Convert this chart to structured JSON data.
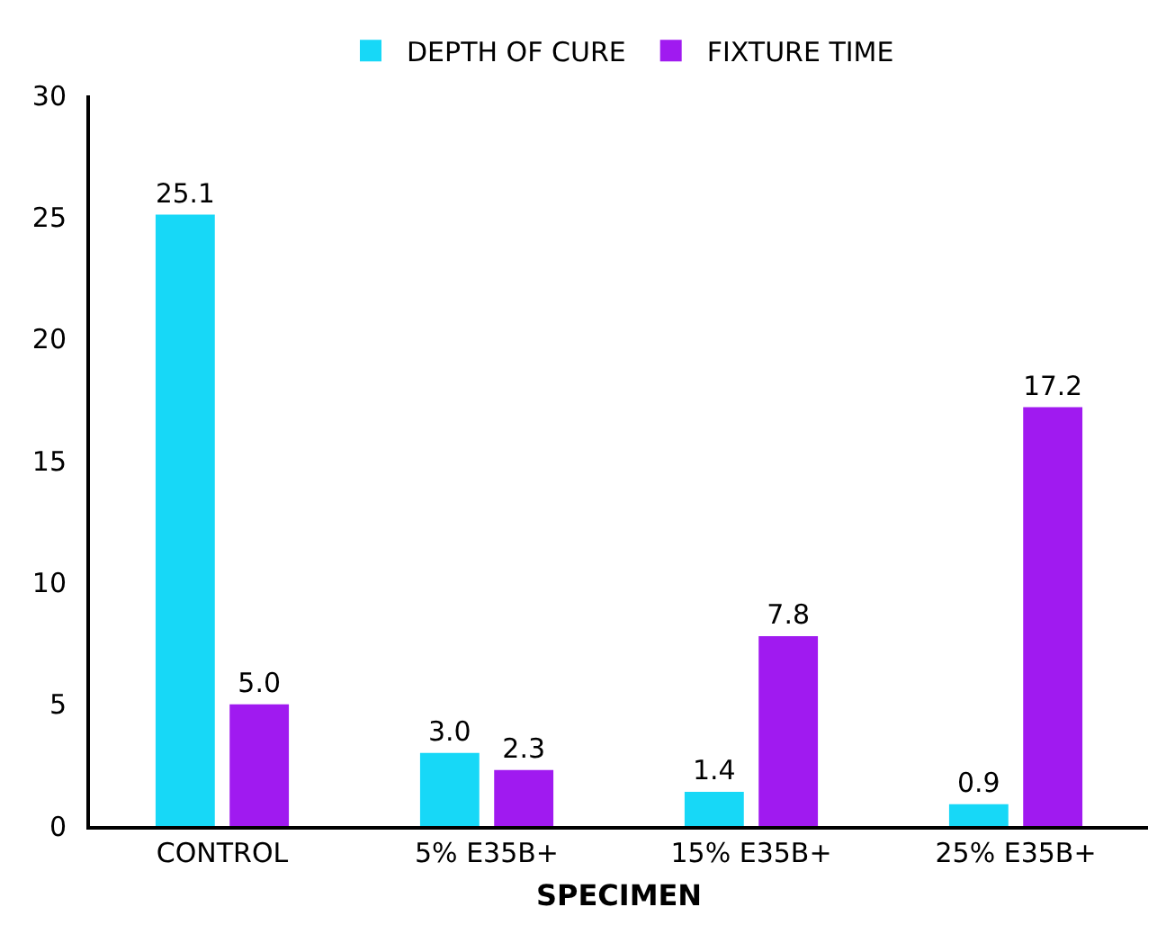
{
  "chart_data": {
    "type": "bar",
    "xlabel": "SPECIMEN",
    "categories": [
      "CONTROL",
      "5% E35B+",
      "15% E35B+",
      "25% E35B+"
    ],
    "series": [
      {
        "name": "DEPTH OF CURE",
        "color": "#17d8f7",
        "values": [
          25.1,
          3.0,
          1.4,
          0.9
        ],
        "value_labels": [
          "25.1",
          "3.0",
          "1.4",
          "0.9"
        ]
      },
      {
        "name": "FIXTURE TIME",
        "color": "#a01af0",
        "values": [
          5.0,
          2.3,
          7.8,
          17.2
        ],
        "value_labels": [
          "5.0",
          "2.3",
          "7.8",
          "17.2"
        ]
      }
    ],
    "ylim": [
      0,
      30
    ],
    "yticks": [
      0,
      5,
      10,
      15,
      20,
      25,
      30
    ],
    "grid": false,
    "legend": "top"
  }
}
